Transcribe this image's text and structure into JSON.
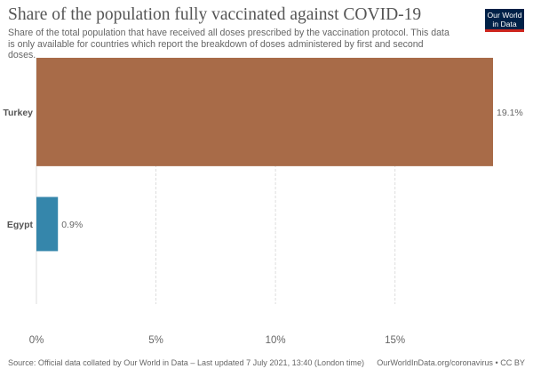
{
  "title": "Share of the population fully vaccinated against COVID-19",
  "subtitle": "Share of the total population that have received all doses prescribed by the vaccination protocol. This data is only available for countries which report the breakdown of doses administered by first and second doses.",
  "logo": {
    "line1": "Our World",
    "line2": "in Data"
  },
  "colors": {
    "Turkey": "#a86b48",
    "Egypt": "#3586ab",
    "grid": "#dddddd",
    "text": "#555555"
  },
  "chart_data": {
    "type": "bar",
    "orientation": "horizontal",
    "title": "Share of the population fully vaccinated against COVID-19",
    "categories": [
      "Turkey",
      "Egypt"
    ],
    "values": [
      19.1,
      0.9
    ],
    "value_labels": [
      "19.1%",
      "0.9%"
    ],
    "xlim": [
      0,
      19.1
    ],
    "xticks": [
      0,
      5,
      10,
      15
    ],
    "xtick_labels": [
      "0%",
      "5%",
      "10%",
      "15%"
    ],
    "xlabel": "",
    "ylabel": "",
    "grid": true,
    "legend": false
  },
  "footer": {
    "source": "Source: Official data collated by Our World in Data – Last updated 7 July 2021, 13:40 (London time)",
    "credit": "OurWorldInData.org/coronavirus • CC BY"
  }
}
